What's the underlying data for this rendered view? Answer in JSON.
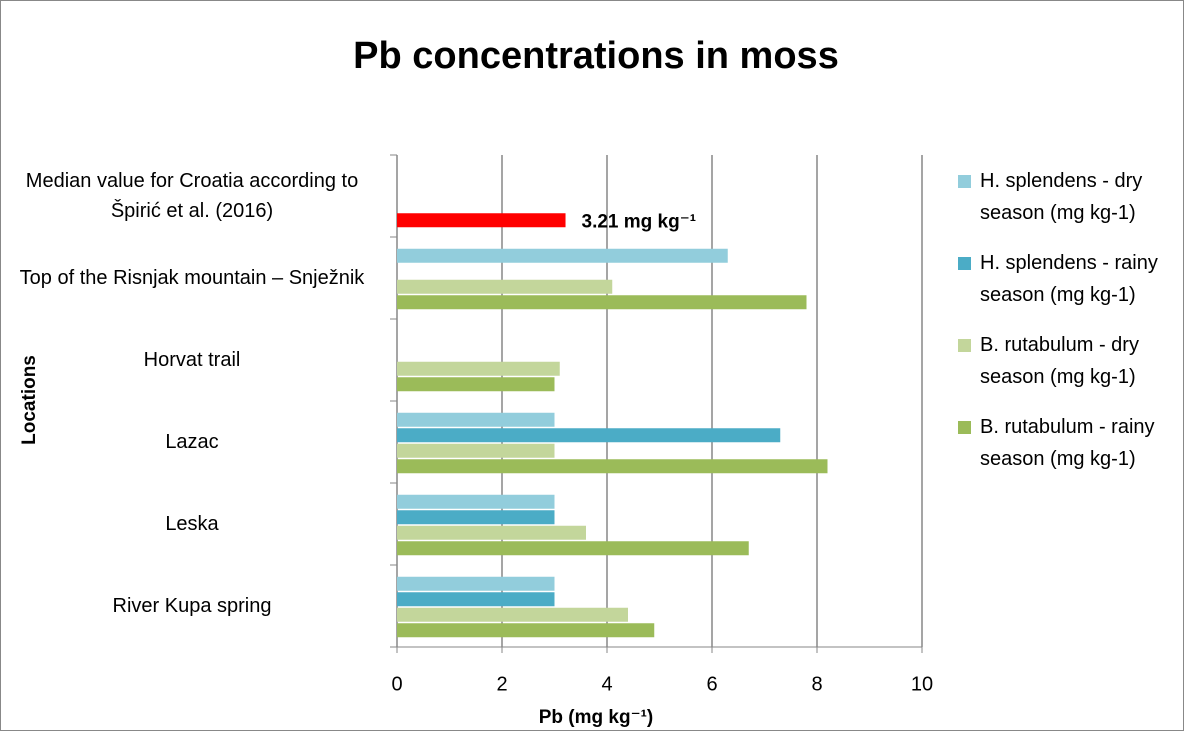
{
  "chart_data": {
    "type": "hbar",
    "title": "Pb concentrations in moss",
    "xlabel": "Pb (mg kg⁻¹)",
    "ylabel": "Locations",
    "categories": [
      "Median value for Croatia according to Špirić et al. (2016)",
      "Top of the Risnjak mountain – Snježnik",
      "Horvat trail",
      "Lazac",
      "Leska",
      "River Kupa spring"
    ],
    "series": [
      {
        "name": "H. splendens - dry season (mg kg-1)",
        "color": "#92cddc",
        "values": [
          null,
          6.3,
          null,
          3.0,
          3.0,
          3.0
        ]
      },
      {
        "name": "H. splendens - rainy season (mg kg-1)",
        "color": "#4bacc6",
        "values": [
          null,
          null,
          null,
          7.3,
          3.0,
          3.0
        ]
      },
      {
        "name": "B. rutabulum - dry season (mg kg-1)",
        "color": "#c3d69b",
        "values": [
          null,
          4.1,
          3.1,
          3.0,
          3.6,
          4.4
        ]
      },
      {
        "name": "B. rutabulum - rainy season (mg kg-1)",
        "color": "#9bbb59",
        "values": [
          null,
          7.8,
          3.0,
          8.2,
          6.7,
          4.9
        ]
      }
    ],
    "median": {
      "value": 3.21,
      "value_label": "3.21 mg kg⁻¹",
      "color": "#ff0000"
    },
    "xlim": [
      0,
      10
    ],
    "xticks": [
      0,
      2,
      4,
      6,
      8,
      10
    ],
    "grid": true,
    "legend": "right"
  }
}
